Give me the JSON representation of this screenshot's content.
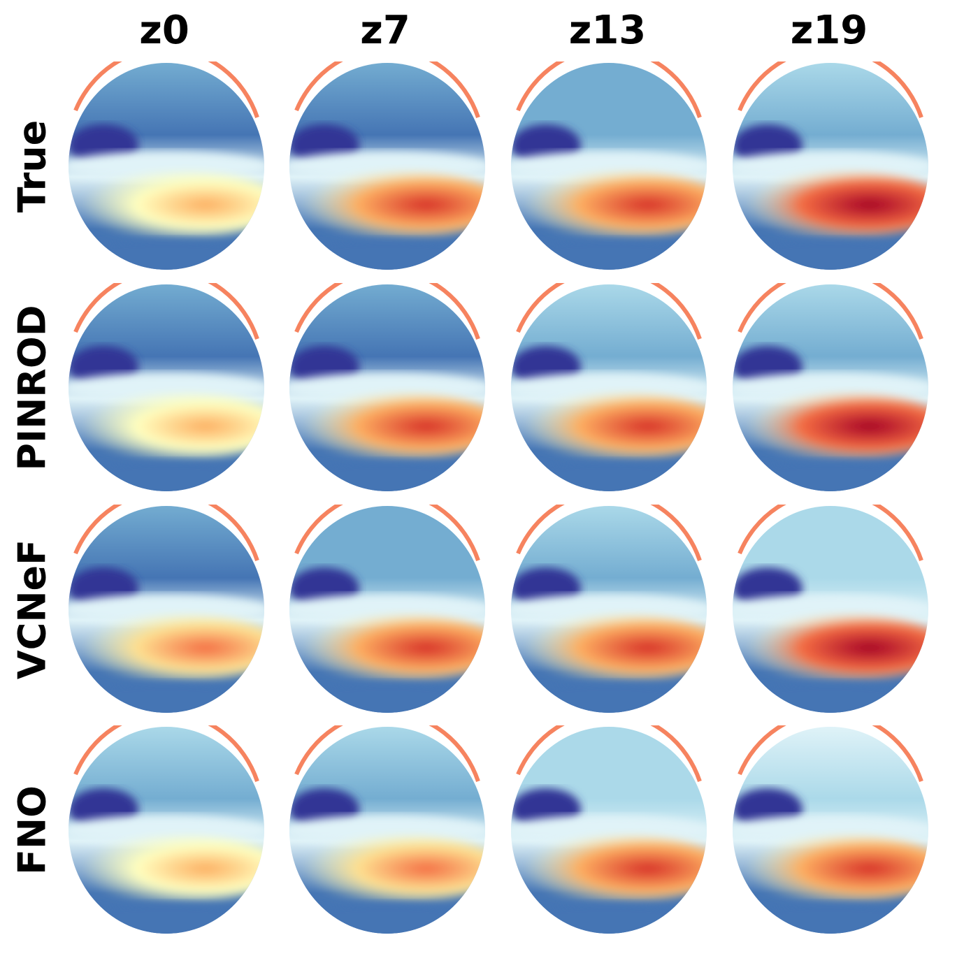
{
  "columns": [
    "z0",
    "z7",
    "z13",
    "z19"
  ],
  "rows": [
    "True",
    "PINROD",
    "VCNeF",
    "FNO"
  ],
  "colormap": {
    "name": "RdYlBu_r",
    "stops": [
      "#313695",
      "#4575b4",
      "#74add1",
      "#abd9e9",
      "#e0f3f8",
      "#ffffbf",
      "#fee090",
      "#fdae61",
      "#f46d43",
      "#d73027",
      "#a50026"
    ]
  },
  "fields": [
    [
      {
        "hot": 0.72,
        "upper": 0.1
      },
      {
        "hot": 0.88,
        "upper": 0.12
      },
      {
        "hot": 0.92,
        "upper": 0.16
      },
      {
        "hot": 0.96,
        "upper": 0.22
      }
    ],
    [
      {
        "hot": 0.74,
        "upper": 0.12
      },
      {
        "hot": 0.9,
        "upper": 0.14
      },
      {
        "hot": 0.93,
        "upper": 0.18
      },
      {
        "hot": 0.96,
        "upper": 0.24
      }
    ],
    [
      {
        "hot": 0.75,
        "upper": 0.13
      },
      {
        "hot": 0.9,
        "upper": 0.15
      },
      {
        "hot": 0.92,
        "upper": 0.19
      },
      {
        "hot": 0.95,
        "upper": 0.25
      }
    ],
    [
      {
        "hot": 0.7,
        "upper": 0.24
      },
      {
        "hot": 0.82,
        "upper": 0.24
      },
      {
        "hot": 0.86,
        "upper": 0.26
      },
      {
        "hot": 0.88,
        "upper": 0.28
      }
    ]
  ]
}
